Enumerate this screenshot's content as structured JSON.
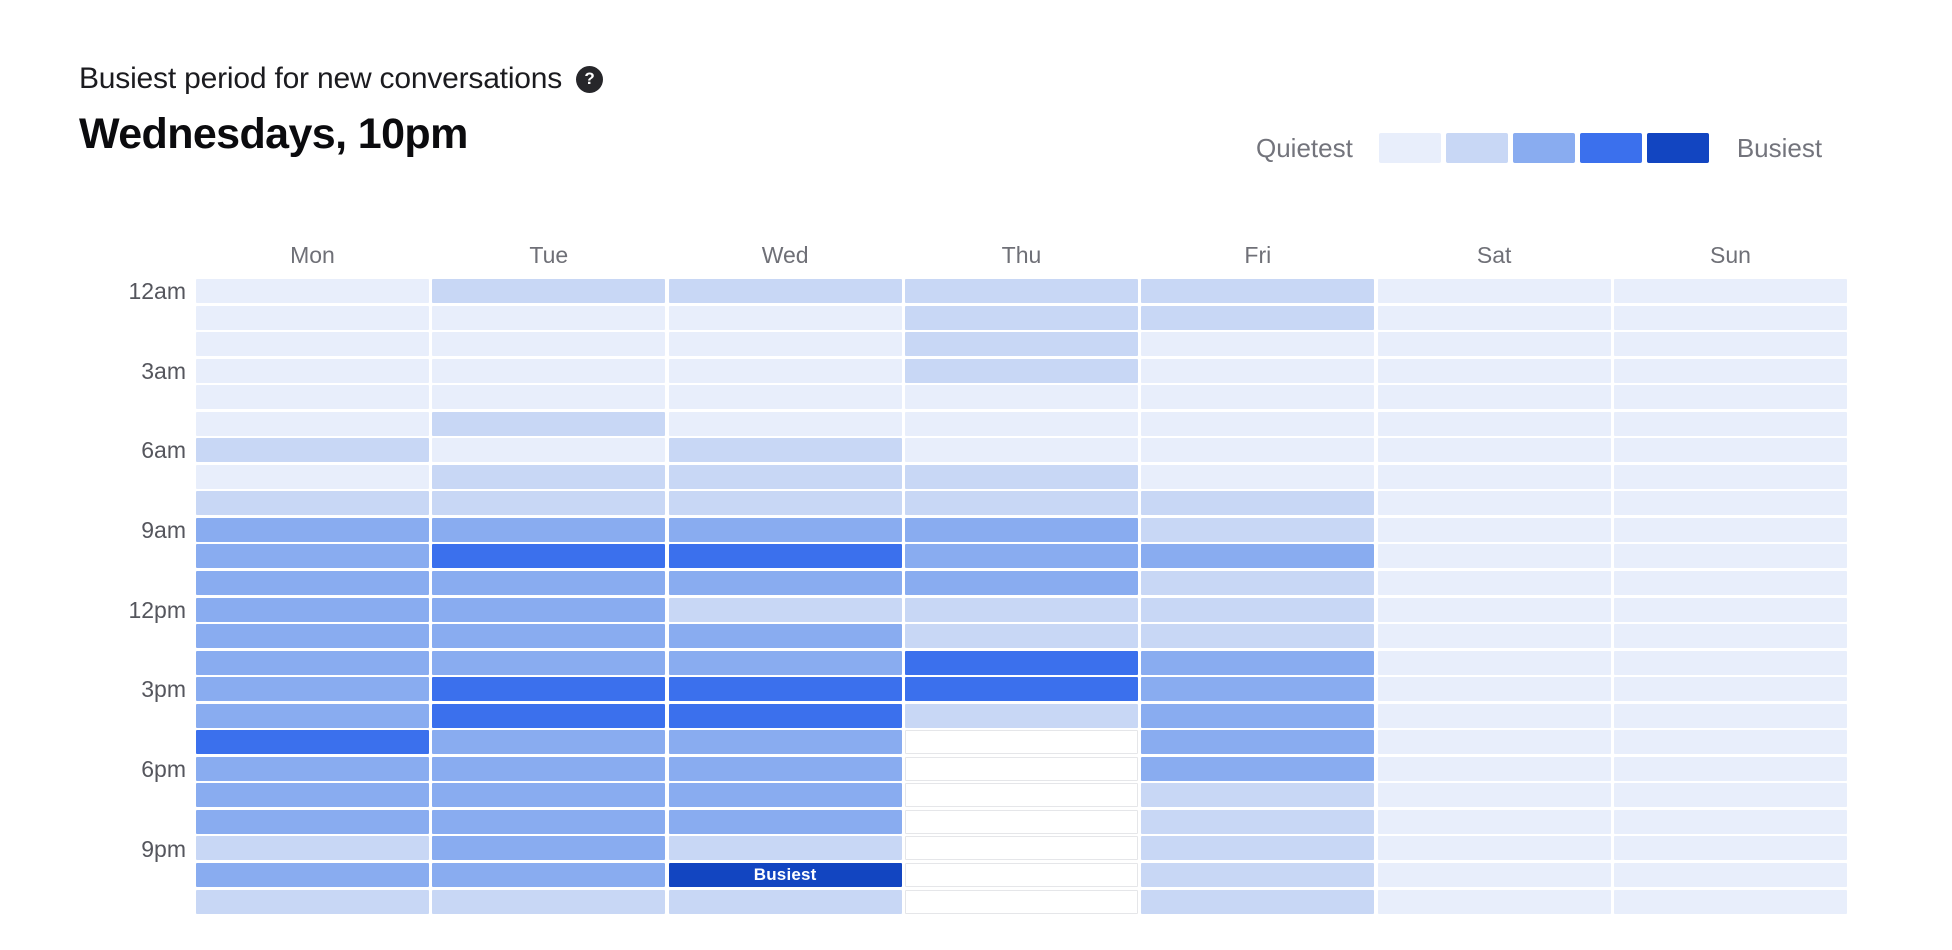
{
  "header": {
    "title": "Busiest period for new conversations",
    "help_glyph": "?",
    "subtitle": "Wednesdays, 10pm"
  },
  "legend": {
    "quietest_label": "Quietest",
    "busiest_label": "Busiest",
    "palette": [
      "#E8EEFB",
      "#C8D7F5",
      "#89ACF0",
      "#3B70ED",
      "#1245C1"
    ],
    "empty_cell_border": "#E5E6E9"
  },
  "chart_data": {
    "type": "heatmap",
    "columns": [
      "Mon",
      "Tue",
      "Wed",
      "Thu",
      "Fri",
      "Sat",
      "Sun"
    ],
    "hours": [
      "12am",
      "1am",
      "2am",
      "3am",
      "4am",
      "5am",
      "6am",
      "7am",
      "8am",
      "9am",
      "10am",
      "11am",
      "12pm",
      "1pm",
      "2pm",
      "3pm",
      "4pm",
      "5pm",
      "6pm",
      "7pm",
      "8pm",
      "9pm",
      "10pm",
      "11pm"
    ],
    "visible_hour_labels": [
      "12am",
      "3am",
      "6am",
      "9am",
      "12pm",
      "3pm",
      "6pm",
      "9pm"
    ],
    "level_scale": "0 = no data (white outlined cell), 1 = quietest ... 5 = busiest",
    "series": [
      {
        "day": "Mon",
        "levels": [
          1,
          1,
          1,
          1,
          1,
          1,
          2,
          1,
          2,
          3,
          3,
          3,
          3,
          3,
          3,
          3,
          3,
          4,
          3,
          3,
          3,
          2,
          3,
          2
        ]
      },
      {
        "day": "Tue",
        "levels": [
          2,
          1,
          1,
          1,
          1,
          2,
          1,
          2,
          2,
          3,
          4,
          3,
          3,
          3,
          3,
          4,
          4,
          3,
          3,
          3,
          3,
          3,
          3,
          2
        ]
      },
      {
        "day": "Wed",
        "levels": [
          2,
          1,
          1,
          1,
          1,
          1,
          2,
          2,
          2,
          3,
          4,
          3,
          2,
          3,
          3,
          4,
          4,
          3,
          3,
          3,
          3,
          2,
          5,
          2
        ]
      },
      {
        "day": "Thu",
        "levels": [
          2,
          2,
          2,
          2,
          1,
          1,
          1,
          2,
          2,
          3,
          3,
          3,
          2,
          2,
          4,
          4,
          2,
          0,
          0,
          0,
          0,
          0,
          0,
          0
        ]
      },
      {
        "day": "Fri",
        "levels": [
          2,
          2,
          1,
          1,
          1,
          1,
          1,
          1,
          2,
          2,
          3,
          2,
          2,
          2,
          3,
          3,
          3,
          3,
          3,
          2,
          2,
          2,
          2,
          2
        ]
      },
      {
        "day": "Sat",
        "levels": [
          1,
          1,
          1,
          1,
          1,
          1,
          1,
          1,
          1,
          1,
          1,
          1,
          1,
          1,
          1,
          1,
          1,
          1,
          1,
          1,
          1,
          1,
          1,
          1
        ]
      },
      {
        "day": "Sun",
        "levels": [
          1,
          1,
          1,
          1,
          1,
          1,
          1,
          1,
          1,
          1,
          1,
          1,
          1,
          1,
          1,
          1,
          1,
          1,
          1,
          1,
          1,
          1,
          1,
          1
        ]
      }
    ],
    "busiest_cell": {
      "day": "Wed",
      "hour": "10pm",
      "label": "Busiest"
    },
    "legend_position": "top-right",
    "grid": "off"
  }
}
